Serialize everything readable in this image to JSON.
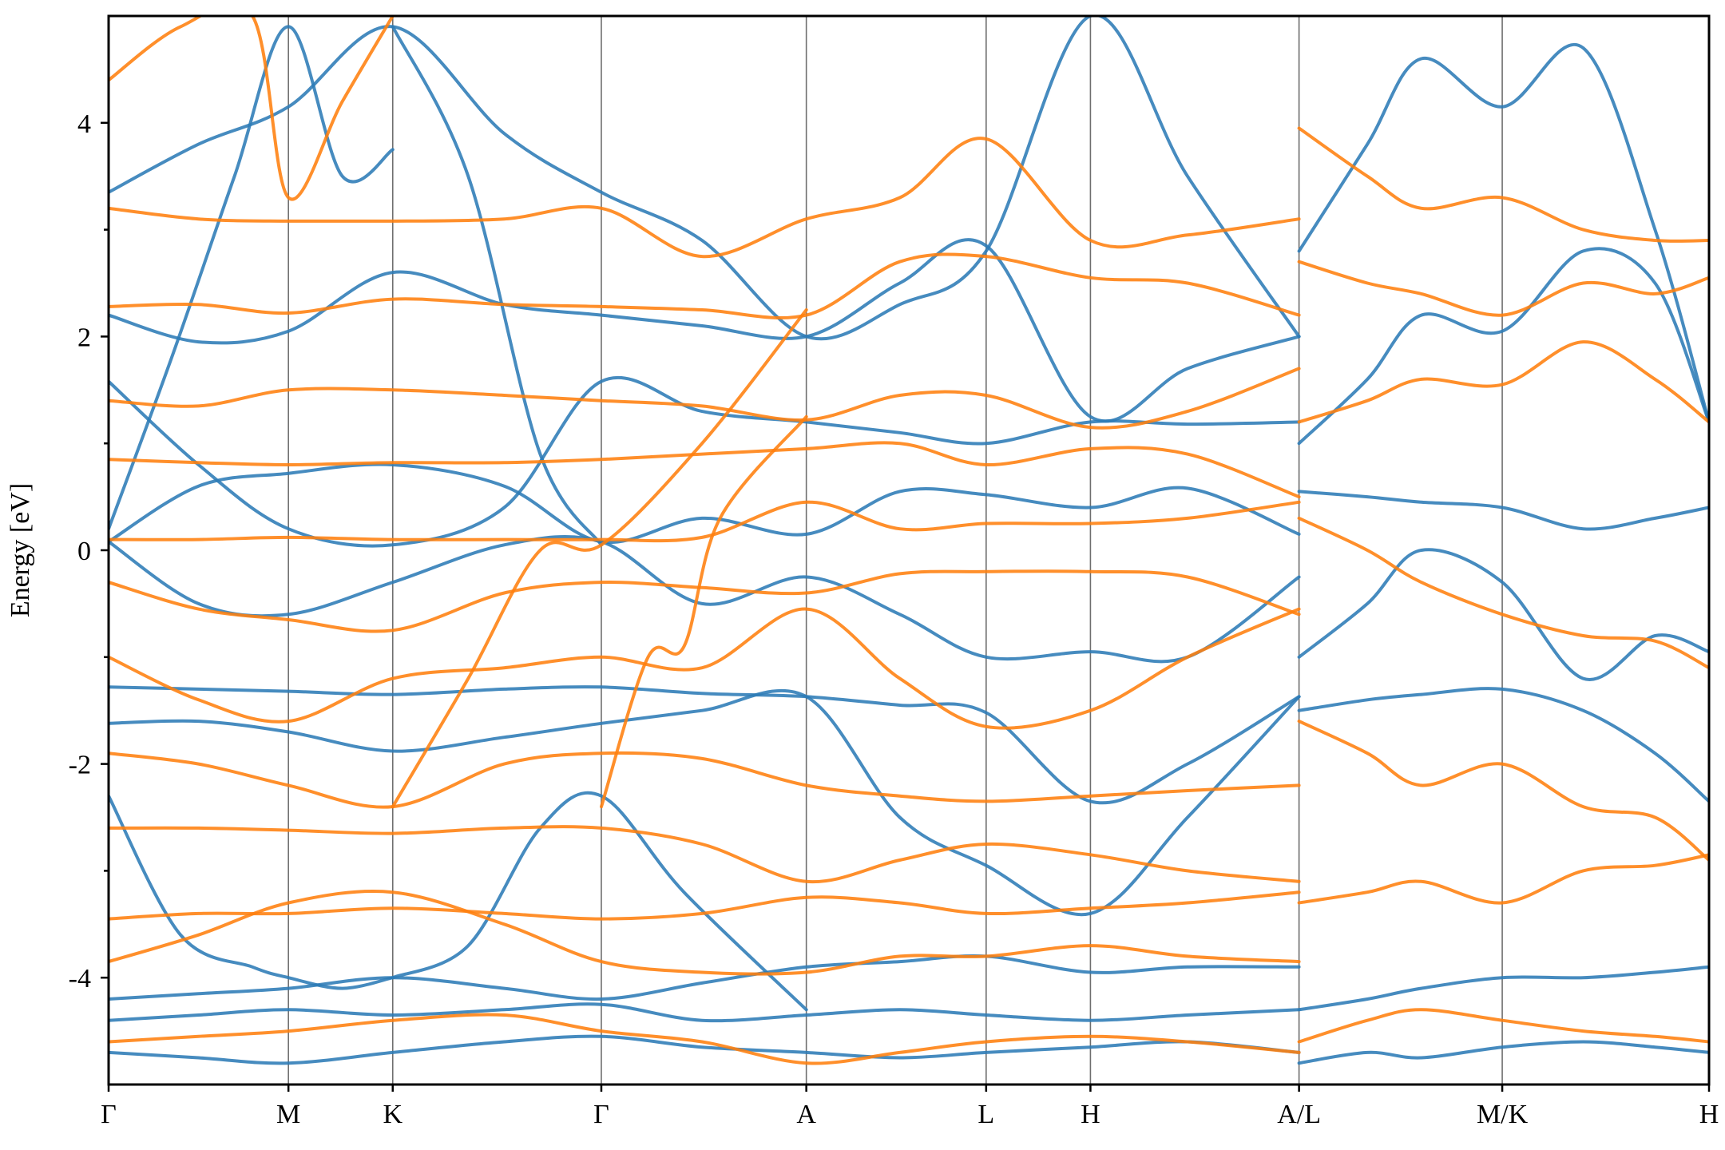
{
  "chart_data": {
    "type": "line",
    "title": "",
    "xlabel": "",
    "ylabel": "Energy [eV]",
    "ylim": [
      -5,
      5
    ],
    "yticks": [
      -4,
      -2,
      0,
      2,
      4
    ],
    "grid": false,
    "legend": "none",
    "kpoints": [
      {
        "label": "Γ",
        "x": 0.0
      },
      {
        "label": "M",
        "x": 1.0
      },
      {
        "label": "K",
        "x": 1.58
      },
      {
        "label": "Γ",
        "x": 2.74
      },
      {
        "label": "A",
        "x": 3.88
      },
      {
        "label": "L",
        "x": 4.88
      },
      {
        "label": "H",
        "x": 5.46
      },
      {
        "label": "A/L",
        "x": 6.62
      },
      {
        "label": "M/K",
        "x": 7.75
      },
      {
        "label": "H",
        "x": 8.9
      }
    ],
    "colors": {
      "spin_up": "#2c7bb6",
      "spin_down": "#ff7f0e"
    },
    "series": [
      {
        "spin": "up",
        "x": [
          0.0,
          0.5,
          1.0,
          1.58,
          2.2,
          2.74,
          3.3,
          3.88,
          4.4,
          4.88,
          5.46,
          6.0,
          6.62
        ],
        "y": [
          -4.2,
          -4.15,
          -4.1,
          -4.0,
          -4.1,
          -4.2,
          -4.05,
          -3.9,
          -3.85,
          -3.8,
          -3.95,
          -3.9,
          -3.9
        ]
      },
      {
        "spin": "up",
        "x": [
          0.0,
          0.5,
          1.0,
          1.58,
          2.2,
          2.74,
          3.3,
          3.88,
          4.4,
          4.88,
          5.46,
          6.0,
          6.62
        ],
        "y": [
          -4.4,
          -4.35,
          -4.3,
          -4.35,
          -4.3,
          -4.25,
          -4.4,
          -4.35,
          -4.3,
          -4.35,
          -4.4,
          -4.35,
          -4.3
        ]
      },
      {
        "spin": "up",
        "x": [
          0.0,
          0.5,
          1.0,
          1.58,
          2.2,
          2.74,
          3.3,
          3.88,
          4.4,
          4.88,
          5.46,
          6.0,
          6.62
        ],
        "y": [
          -4.7,
          -4.75,
          -4.8,
          -4.7,
          -4.6,
          -4.55,
          -4.65,
          -4.7,
          -4.75,
          -4.7,
          -4.65,
          -4.6,
          -4.7
        ]
      },
      {
        "spin": "up",
        "x": [
          0.0,
          0.5,
          1.0,
          1.58,
          2.2,
          2.74,
          3.3,
          3.88,
          4.4,
          4.88,
          5.46,
          6.0,
          6.62
        ],
        "y": [
          -1.28,
          -1.3,
          -1.32,
          -1.35,
          -1.3,
          -1.28,
          -1.34,
          -1.37,
          -1.45,
          -1.52,
          -2.35,
          -2.0,
          -1.37
        ]
      },
      {
        "spin": "up",
        "x": [
          0.0,
          0.5,
          1.0,
          1.58,
          2.2,
          2.74,
          3.3,
          3.88,
          4.4,
          4.88,
          5.46,
          6.0,
          6.62
        ],
        "y": [
          -1.62,
          -1.6,
          -1.7,
          -1.88,
          -1.75,
          -1.62,
          -1.5,
          -1.37,
          -2.5,
          -2.95,
          -3.4,
          -2.5,
          -1.37
        ]
      },
      {
        "spin": "up",
        "x": [
          0.0,
          0.5,
          1.0,
          1.58,
          2.2,
          2.74,
          3.3,
          3.88,
          4.4,
          4.88,
          5.46,
          6.0,
          6.62
        ],
        "y": [
          0.08,
          -0.5,
          -0.6,
          -0.3,
          0.05,
          0.08,
          -0.5,
          -0.25,
          -0.6,
          -1.0,
          -0.95,
          -1.0,
          -0.25
        ]
      },
      {
        "spin": "up",
        "x": [
          0.0,
          0.5,
          1.0,
          1.58,
          2.2,
          2.74,
          3.3,
          3.88,
          4.4,
          4.88,
          5.46,
          6.0,
          6.62
        ],
        "y": [
          0.08,
          0.6,
          0.72,
          0.8,
          0.6,
          0.08,
          0.3,
          0.15,
          0.55,
          0.52,
          0.4,
          0.58,
          0.15
        ]
      },
      {
        "spin": "up",
        "x": [
          0.0,
          0.5,
          1.0,
          1.58,
          2.2,
          2.74,
          3.3,
          3.88,
          4.4,
          4.88,
          5.46,
          6.0,
          6.62
        ],
        "y": [
          1.58,
          0.8,
          0.2,
          0.05,
          0.4,
          1.58,
          1.3,
          1.2,
          1.1,
          1.0,
          1.2,
          1.18,
          1.2
        ]
      },
      {
        "spin": "up",
        "x": [
          0.0,
          0.5,
          1.0,
          1.58,
          2.2,
          2.74,
          3.3,
          3.88,
          4.4,
          4.88,
          5.46,
          6.0,
          6.62
        ],
        "y": [
          2.2,
          1.95,
          2.05,
          2.6,
          2.3,
          2.2,
          2.1,
          2.0,
          2.5,
          2.85,
          1.25,
          1.7,
          2.0
        ]
      },
      {
        "spin": "up",
        "x": [
          0.0,
          0.5,
          1.0,
          1.58,
          2.2,
          2.74,
          3.3,
          3.88,
          4.4,
          4.88,
          5.46,
          6.0,
          6.62
        ],
        "y": [
          3.35,
          3.8,
          4.15,
          4.9,
          3.9,
          3.35,
          2.9,
          2.0,
          2.3,
          2.8,
          5.0,
          3.5,
          2.0
        ]
      },
      {
        "spin": "up",
        "x": [
          0.0,
          0.35,
          0.7,
          1.0,
          1.3,
          1.58
        ],
        "y": [
          0.2,
          1.8,
          3.5,
          4.9,
          3.5,
          3.75
        ]
      },
      {
        "spin": "up",
        "x": [
          1.58,
          2.0,
          2.4,
          2.74
        ],
        "y": [
          4.9,
          3.5,
          0.9,
          0.05
        ]
      },
      {
        "spin": "up",
        "x": [
          0.0,
          0.4,
          0.8,
          1.0,
          1.3,
          1.58
        ],
        "y": [
          -2.3,
          -3.6,
          -3.9,
          -4.0,
          -4.1,
          -4.0
        ]
      },
      {
        "spin": "up",
        "x": [
          1.58,
          2.0,
          2.4,
          2.74,
          3.2,
          3.88
        ],
        "y": [
          -4.0,
          -3.7,
          -2.6,
          -2.3,
          -3.2,
          -4.3
        ]
      },
      {
        "spin": "up",
        "x": [
          6.62,
          7.0,
          7.3,
          7.75,
          8.2,
          8.6,
          8.9
        ],
        "y": [
          -4.3,
          -4.2,
          -4.1,
          -4.0,
          -4.0,
          -3.95,
          -3.9
        ]
      },
      {
        "spin": "up",
        "x": [
          6.62,
          7.0,
          7.3,
          7.75,
          8.2,
          8.6,
          8.9
        ],
        "y": [
          -1.5,
          -1.4,
          -1.35,
          -1.3,
          -1.5,
          -1.9,
          -2.35
        ]
      },
      {
        "spin": "up",
        "x": [
          6.62,
          7.0,
          7.3,
          7.75,
          8.2,
          8.6,
          8.9
        ],
        "y": [
          0.55,
          0.5,
          0.45,
          0.4,
          0.2,
          0.3,
          0.4
        ]
      },
      {
        "spin": "up",
        "x": [
          6.62,
          7.0,
          7.3,
          7.75,
          8.2,
          8.6,
          8.9
        ],
        "y": [
          1.0,
          1.6,
          2.2,
          2.05,
          2.8,
          2.5,
          1.2
        ]
      },
      {
        "spin": "up",
        "x": [
          6.62,
          7.0,
          7.3,
          7.75,
          8.2,
          8.6,
          8.9
        ],
        "y": [
          2.8,
          3.8,
          4.6,
          4.15,
          4.7,
          3.0,
          1.2
        ]
      },
      {
        "spin": "up",
        "x": [
          6.62,
          7.0,
          7.3,
          7.75,
          8.2,
          8.6,
          8.9
        ],
        "y": [
          -1.0,
          -0.5,
          0.0,
          -0.3,
          -1.2,
          -0.8,
          -0.95
        ]
      },
      {
        "spin": "up",
        "x": [
          6.62,
          7.0,
          7.3,
          7.75,
          8.2,
          8.6,
          8.9
        ],
        "y": [
          -4.8,
          -4.7,
          -4.75,
          -4.65,
          -4.6,
          -4.65,
          -4.7
        ]
      },
      {
        "spin": "down",
        "x": [
          0.0,
          0.5,
          1.0,
          1.58,
          2.2,
          2.74,
          3.3,
          3.88,
          4.4,
          4.88,
          5.46,
          6.0,
          6.62
        ],
        "y": [
          3.2,
          3.1,
          3.08,
          3.08,
          3.1,
          3.2,
          2.75,
          3.1,
          3.3,
          3.85,
          2.9,
          2.95,
          3.1
        ]
      },
      {
        "spin": "down",
        "x": [
          0.0,
          0.5,
          1.0,
          1.58,
          2.2,
          2.74,
          3.3,
          3.88,
          4.4,
          4.88,
          5.46,
          6.0,
          6.62
        ],
        "y": [
          2.28,
          2.3,
          2.22,
          2.35,
          2.3,
          2.28,
          2.25,
          2.2,
          2.7,
          2.75,
          2.55,
          2.5,
          2.2
        ]
      },
      {
        "spin": "down",
        "x": [
          0.0,
          0.5,
          1.0,
          1.58,
          2.2,
          2.74,
          3.3,
          3.88,
          4.4,
          4.88,
          5.46,
          6.0,
          6.62
        ],
        "y": [
          1.4,
          1.35,
          1.5,
          1.5,
          1.45,
          1.4,
          1.35,
          1.22,
          1.45,
          1.45,
          1.15,
          1.3,
          1.7
        ]
      },
      {
        "spin": "down",
        "x": [
          0.0,
          0.5,
          1.0,
          1.58,
          2.2,
          2.74,
          3.3,
          3.88,
          4.4,
          4.88,
          5.46,
          6.0,
          6.62
        ],
        "y": [
          0.85,
          0.82,
          0.8,
          0.82,
          0.82,
          0.85,
          0.9,
          0.95,
          1.0,
          0.8,
          0.95,
          0.9,
          0.5
        ]
      },
      {
        "spin": "down",
        "x": [
          0.0,
          0.5,
          1.0,
          1.58,
          2.2,
          2.74,
          3.3,
          3.88,
          4.4,
          4.88,
          5.46,
          6.0,
          6.62
        ],
        "y": [
          0.1,
          0.1,
          0.12,
          0.1,
          0.1,
          0.1,
          0.12,
          0.45,
          0.2,
          0.25,
          0.25,
          0.3,
          0.45
        ]
      },
      {
        "spin": "down",
        "x": [
          0.0,
          0.5,
          1.0,
          1.58,
          2.2,
          2.74,
          3.3,
          3.88,
          4.4,
          4.88,
          5.46,
          6.0,
          6.62
        ],
        "y": [
          -0.3,
          -0.55,
          -0.65,
          -0.75,
          -0.4,
          -0.3,
          -0.35,
          -0.4,
          -0.22,
          -0.2,
          -0.2,
          -0.25,
          -0.6
        ]
      },
      {
        "spin": "down",
        "x": [
          0.0,
          0.5,
          1.0,
          1.58,
          2.2,
          2.74,
          3.3,
          3.88,
          4.4,
          4.88,
          5.46,
          6.0,
          6.62
        ],
        "y": [
          -1.0,
          -1.4,
          -1.6,
          -1.2,
          -1.1,
          -1.0,
          -1.1,
          -0.55,
          -1.2,
          -1.65,
          -1.5,
          -1.0,
          -0.55
        ]
      },
      {
        "spin": "down",
        "x": [
          0.0,
          0.5,
          1.0,
          1.58,
          2.2,
          2.74,
          3.3,
          3.88,
          4.4,
          4.88,
          5.46,
          6.0,
          6.62
        ],
        "y": [
          -1.9,
          -2.0,
          -2.2,
          -2.4,
          -2.0,
          -1.9,
          -1.95,
          -2.2,
          -2.3,
          -2.35,
          -2.3,
          -2.25,
          -2.2
        ]
      },
      {
        "spin": "down",
        "x": [
          0.0,
          0.5,
          1.0,
          1.58,
          2.2,
          2.74,
          3.3,
          3.88,
          4.4,
          4.88,
          5.46,
          6.0,
          6.62
        ],
        "y": [
          -2.6,
          -2.6,
          -2.62,
          -2.65,
          -2.6,
          -2.6,
          -2.75,
          -3.1,
          -2.9,
          -2.75,
          -2.85,
          -3.0,
          -3.1
        ]
      },
      {
        "spin": "down",
        "x": [
          0.0,
          0.5,
          1.0,
          1.58,
          2.2,
          2.74,
          3.3,
          3.88,
          4.4,
          4.88,
          5.46,
          6.0,
          6.62
        ],
        "y": [
          -3.45,
          -3.4,
          -3.4,
          -3.35,
          -3.4,
          -3.45,
          -3.4,
          -3.25,
          -3.3,
          -3.4,
          -3.35,
          -3.3,
          -3.2
        ]
      },
      {
        "spin": "down",
        "x": [
          0.0,
          0.5,
          1.0,
          1.58,
          2.2,
          2.74,
          3.3,
          3.88,
          4.4,
          4.88,
          5.46,
          6.0,
          6.62
        ],
        "y": [
          -3.85,
          -3.6,
          -3.3,
          -3.2,
          -3.5,
          -3.85,
          -3.95,
          -3.95,
          -3.8,
          -3.8,
          -3.7,
          -3.8,
          -3.85
        ]
      },
      {
        "spin": "down",
        "x": [
          0.0,
          0.5,
          1.0,
          1.58,
          2.2,
          2.74,
          3.3,
          3.88,
          4.4,
          4.88,
          5.46,
          6.0,
          6.62
        ],
        "y": [
          -4.6,
          -4.55,
          -4.5,
          -4.4,
          -4.35,
          -4.5,
          -4.6,
          -4.8,
          -4.7,
          -4.6,
          -4.55,
          -4.6,
          -4.7
        ]
      },
      {
        "spin": "down",
        "x": [
          0.0,
          0.4,
          0.8,
          1.0,
          1.3,
          1.58
        ],
        "y": [
          4.4,
          4.9,
          5.0,
          3.3,
          4.2,
          5.0
        ]
      },
      {
        "spin": "down",
        "x": [
          1.58,
          2.0,
          2.4,
          2.74,
          3.3,
          3.88
        ],
        "y": [
          -2.4,
          -1.2,
          0.0,
          0.05,
          1.0,
          2.25
        ]
      },
      {
        "spin": "down",
        "x": [
          2.74,
          3.0,
          3.2,
          3.4,
          3.88
        ],
        "y": [
          -2.4,
          -1.0,
          -0.9,
          0.3,
          1.25
        ]
      },
      {
        "spin": "down",
        "x": [
          6.62,
          7.0,
          7.3,
          7.75,
          8.2,
          8.6,
          8.9
        ],
        "y": [
          3.95,
          3.5,
          3.2,
          3.3,
          3.0,
          2.9,
          2.9
        ]
      },
      {
        "spin": "down",
        "x": [
          6.62,
          7.0,
          7.3,
          7.75,
          8.2,
          8.6,
          8.9
        ],
        "y": [
          2.7,
          2.5,
          2.4,
          2.2,
          2.5,
          2.4,
          2.55
        ]
      },
      {
        "spin": "down",
        "x": [
          6.62,
          7.0,
          7.3,
          7.75,
          8.2,
          8.6,
          8.9
        ],
        "y": [
          1.2,
          1.4,
          1.6,
          1.55,
          1.95,
          1.6,
          1.2
        ]
      },
      {
        "spin": "down",
        "x": [
          6.62,
          7.0,
          7.3,
          7.75,
          8.2,
          8.6,
          8.9
        ],
        "y": [
          0.3,
          0.0,
          -0.3,
          -0.6,
          -0.8,
          -0.85,
          -1.1
        ]
      },
      {
        "spin": "down",
        "x": [
          6.62,
          7.0,
          7.3,
          7.75,
          8.2,
          8.6,
          8.9
        ],
        "y": [
          -1.6,
          -1.9,
          -2.2,
          -2.0,
          -2.4,
          -2.5,
          -2.9
        ]
      },
      {
        "spin": "down",
        "x": [
          6.62,
          7.0,
          7.3,
          7.75,
          8.2,
          8.6,
          8.9
        ],
        "y": [
          -3.3,
          -3.2,
          -3.1,
          -3.3,
          -3.0,
          -2.95,
          -2.85
        ]
      },
      {
        "spin": "down",
        "x": [
          6.62,
          7.0,
          7.3,
          7.75,
          8.2,
          8.6,
          8.9
        ],
        "y": [
          -4.6,
          -4.4,
          -4.3,
          -4.4,
          -4.5,
          -4.55,
          -4.6
        ]
      }
    ]
  }
}
